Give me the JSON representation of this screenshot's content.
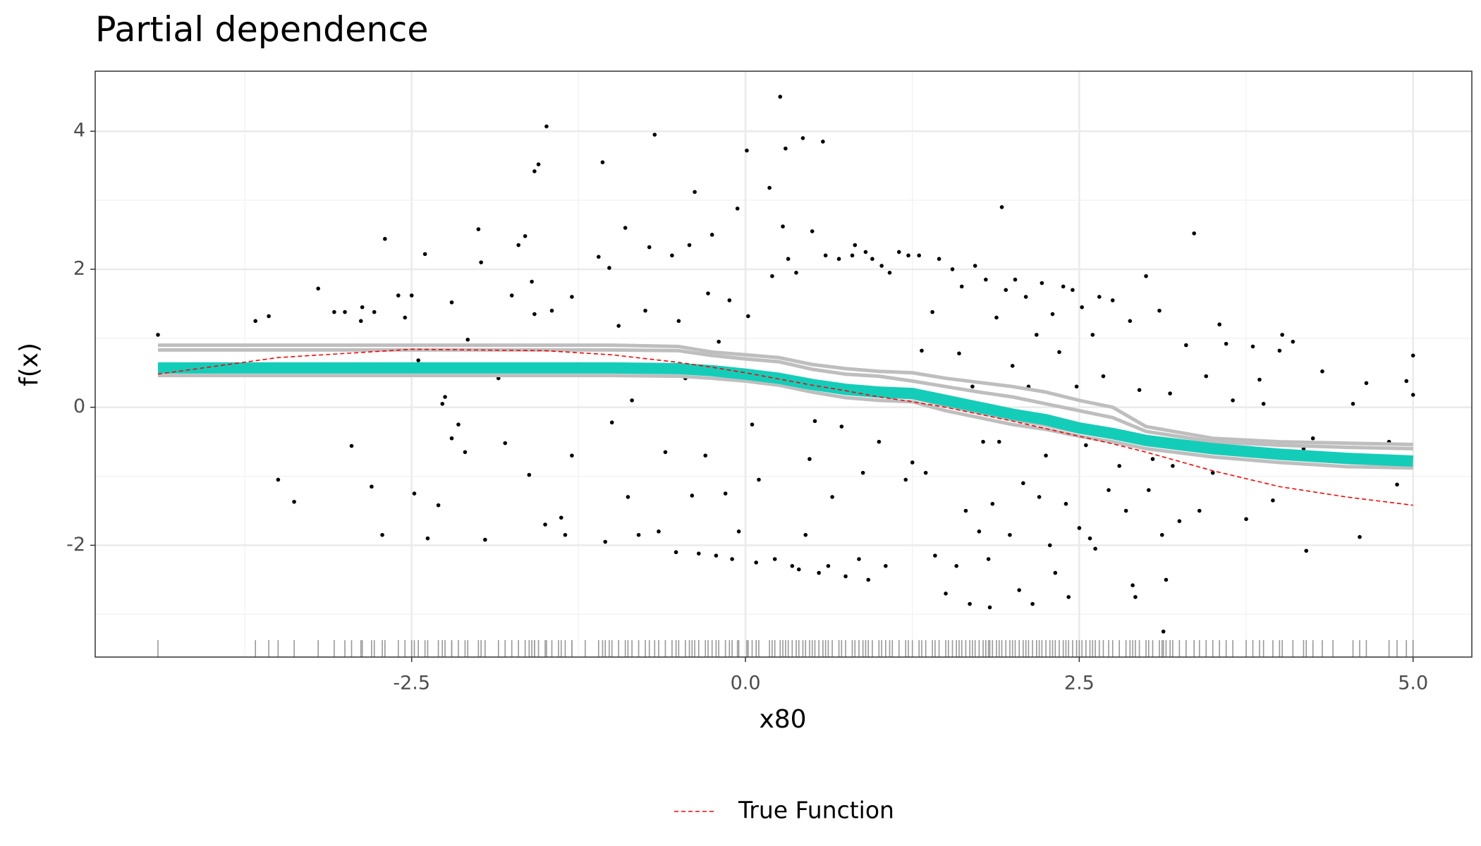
{
  "chart_data": {
    "type": "line",
    "title": "Partial dependence",
    "xlabel": "x80",
    "ylabel": "f(x)",
    "xlim": [
      -4.87,
      5.44
    ],
    "ylim": [
      -3.62,
      4.87
    ],
    "xticks": [
      -2.5,
      {
        "value": 0,
        "label": "0.0"
      },
      2.5,
      {
        "value": 5,
        "label": "5.0"
      }
    ],
    "yticks": [
      -2,
      0,
      2,
      4
    ],
    "xminor": [
      -3.75,
      -1.25,
      1.25,
      3.75
    ],
    "yminor": [
      -3,
      -1,
      1,
      3
    ],
    "grid": true,
    "rug": true,
    "legend": "bottom",
    "x": [
      -4.4,
      -3.5,
      -2.5,
      -1.5,
      -1,
      -0.5,
      -0.25,
      0,
      0.25,
      0.5,
      0.75,
      1,
      1.25,
      1.5,
      1.75,
      2,
      2.25,
      2.5,
      2.75,
      3,
      3.5,
      4,
      4.5,
      5
    ],
    "series": [
      {
        "color": "#bebebe",
        "width": 5,
        "values": [
          0.9,
          0.9,
          0.9,
          0.9,
          0.9,
          0.88,
          0.8,
          0.76,
          0.72,
          0.62,
          0.56,
          0.52,
          0.5,
          0.42,
          0.36,
          0.3,
          0.22,
          0.1,
          0,
          -0.28,
          -0.45,
          -0.5,
          -0.52,
          -0.54
        ]
      },
      {
        "color": "#bebebe",
        "width": 5,
        "values": [
          0.83,
          0.83,
          0.83,
          0.83,
          0.83,
          0.82,
          0.75,
          0.7,
          0.66,
          0.55,
          0.48,
          0.45,
          0.38,
          0.3,
          0.22,
          0.15,
          0.05,
          -0.05,
          -0.15,
          -0.35,
          -0.5,
          -0.55,
          -0.58,
          -0.6
        ]
      },
      {
        "color": "#bebebe",
        "width": 5,
        "values": [
          0.62,
          0.62,
          0.62,
          0.62,
          0.62,
          0.61,
          0.58,
          0.53,
          0.47,
          0.38,
          0.3,
          0.26,
          0.24,
          0.14,
          0.04,
          -0.06,
          -0.14,
          -0.26,
          -0.34,
          -0.44,
          -0.56,
          -0.64,
          -0.7,
          -0.74
        ]
      },
      {
        "color": "#bebebe",
        "width": 5,
        "values": [
          0.52,
          0.52,
          0.52,
          0.52,
          0.52,
          0.51,
          0.48,
          0.43,
          0.37,
          0.28,
          0.2,
          0.16,
          0.14,
          0.02,
          -0.08,
          -0.18,
          -0.26,
          -0.36,
          -0.44,
          -0.54,
          -0.66,
          -0.74,
          -0.8,
          -0.84
        ]
      },
      {
        "color": "#bebebe",
        "width": 5,
        "values": [
          0.46,
          0.46,
          0.46,
          0.46,
          0.46,
          0.45,
          0.42,
          0.38,
          0.32,
          0.22,
          0.14,
          0.1,
          0.08,
          -0.05,
          -0.15,
          -0.25,
          -0.32,
          -0.42,
          -0.5,
          -0.6,
          -0.72,
          -0.8,
          -0.86,
          -0.88
        ]
      },
      {
        "color": "#14cdb9",
        "width": 16,
        "values": [
          0.57,
          0.57,
          0.57,
          0.57,
          0.57,
          0.56,
          0.53,
          0.48,
          0.42,
          0.33,
          0.26,
          0.22,
          0.2,
          0.1,
          0,
          -0.1,
          -0.18,
          -0.3,
          -0.38,
          -0.48,
          -0.6,
          -0.68,
          -0.74,
          -0.78
        ]
      },
      {
        "name": "True Function",
        "color": "#ff0000",
        "width": 1.6,
        "dash": "dashed",
        "values": [
          0.48,
          0.72,
          0.84,
          0.82,
          0.76,
          0.65,
          0.58,
          0.5,
          0.41,
          0.32,
          0.24,
          0.15,
          0.08,
          0,
          -0.1,
          -0.2,
          -0.31,
          -0.42,
          -0.53,
          -0.65,
          -0.92,
          -1.15,
          -1.3,
          -1.42
        ]
      }
    ],
    "points": {
      "color": "#000000",
      "x": [
        -4.4,
        -3.67,
        -3.57,
        -3.5,
        -3.38,
        -3.2,
        -3.08,
        -3.0,
        -2.95,
        -2.88,
        -2.87,
        -2.8,
        -2.78,
        -2.72,
        -2.7,
        -2.6,
        -2.55,
        -2.5,
        -2.48,
        -2.45,
        -2.4,
        -2.38,
        -2.3,
        -2.27,
        -2.25,
        -2.2,
        -2.2,
        -2.15,
        -2.1,
        -2.08,
        -2.0,
        -1.98,
        -1.95,
        -1.85,
        -1.8,
        -1.75,
        -1.7,
        -1.65,
        -1.62,
        -1.6,
        -1.58,
        -1.58,
        -1.55,
        -1.5,
        -1.45,
        -1.49,
        -1.4,
        -1.38,
        -1.35,
        -1.3,
        -1.3,
        -1.2,
        -1.1,
        -1.07,
        -1.05,
        -1.02,
        -1.0,
        -0.95,
        -0.9,
        -0.88,
        -0.85,
        -0.8,
        -0.75,
        -0.72,
        -0.68,
        -0.65,
        -0.6,
        -0.55,
        -0.52,
        -0.5,
        -0.45,
        -0.42,
        -0.4,
        -0.38,
        -0.35,
        -0.3,
        -0.28,
        -0.25,
        -0.22,
        -0.2,
        -0.15,
        -0.12,
        -0.1,
        -0.06,
        -0.05,
        0.01,
        0.02,
        0.05,
        0.08,
        0.1,
        0.18,
        0.2,
        0.22,
        0.26,
        0.28,
        0.3,
        0.32,
        0.35,
        0.38,
        0.4,
        0.43,
        0.45,
        0.48,
        0.5,
        0.52,
        0.55,
        0.58,
        0.6,
        0.62,
        0.65,
        0.7,
        0.72,
        0.75,
        0.8,
        0.82,
        0.85,
        0.88,
        0.9,
        0.92,
        0.95,
        1.0,
        1.02,
        1.05,
        1.08,
        1.1,
        1.15,
        1.2,
        1.22,
        1.25,
        1.3,
        1.32,
        1.35,
        1.4,
        1.42,
        1.45,
        1.5,
        1.52,
        1.55,
        1.58,
        1.6,
        1.62,
        1.65,
        1.68,
        1.7,
        1.72,
        1.75,
        1.78,
        1.8,
        1.82,
        1.83,
        1.85,
        1.88,
        1.9,
        1.92,
        1.95,
        1.98,
        2.0,
        2.02,
        2.05,
        2.08,
        2.1,
        2.12,
        2.15,
        2.18,
        2.2,
        2.22,
        2.25,
        2.28,
        2.3,
        2.32,
        2.35,
        2.38,
        2.4,
        2.42,
        2.45,
        2.48,
        2.5,
        2.52,
        2.55,
        2.58,
        2.6,
        2.62,
        2.65,
        2.68,
        2.72,
        2.75,
        2.8,
        2.85,
        2.88,
        2.9,
        2.92,
        2.95,
        3.0,
        3.02,
        3.05,
        3.1,
        3.12,
        3.15,
        3.13,
        3.18,
        3.2,
        3.25,
        3.3,
        3.36,
        3.4,
        3.45,
        3.5,
        3.55,
        3.6,
        3.65,
        3.75,
        3.8,
        3.85,
        3.88,
        3.95,
        4.0,
        4.02,
        4.1,
        4.18,
        4.2,
        4.25,
        4.32,
        4.4,
        4.55,
        4.6,
        4.65,
        4.82,
        4.88,
        4.95,
        5.0,
        5.0
      ],
      "y": [
        1.05,
        1.25,
        1.32,
        -1.05,
        -1.37,
        1.72,
        1.38,
        1.38,
        -0.56,
        1.25,
        1.45,
        -1.15,
        1.38,
        -1.85,
        2.44,
        1.62,
        1.3,
        1.62,
        -1.25,
        0.68,
        2.22,
        -1.9,
        -1.42,
        0.05,
        0.15,
        1.52,
        -0.45,
        -0.25,
        -0.65,
        0.98,
        2.58,
        2.1,
        -1.92,
        0.42,
        -0.52,
        1.62,
        2.35,
        2.48,
        -0.98,
        1.82,
        1.35,
        3.42,
        3.52,
        -1.7,
        1.4,
        4.07,
        0.62,
        -1.6,
        -1.85,
        1.6,
        -0.7,
        0.6,
        2.18,
        3.55,
        -1.95,
        2.02,
        -0.22,
        1.18,
        2.6,
        -1.3,
        0.1,
        -1.85,
        1.4,
        2.32,
        3.95,
        -1.8,
        -0.65,
        2.2,
        -2.1,
        1.25,
        0.42,
        2.35,
        -1.28,
        3.12,
        -2.12,
        -0.7,
        1.65,
        2.5,
        -2.15,
        0.95,
        -1.25,
        1.55,
        -2.2,
        2.88,
        -1.8,
        3.72,
        1.32,
        -0.25,
        -2.25,
        -1.05,
        3.18,
        1.9,
        -2.2,
        4.5,
        2.62,
        3.75,
        2.15,
        -2.3,
        1.95,
        -2.35,
        3.9,
        -1.85,
        -0.75,
        2.55,
        -0.2,
        -2.4,
        3.85,
        2.2,
        -2.3,
        -1.3,
        2.15,
        -0.28,
        -2.45,
        2.2,
        2.35,
        -2.2,
        -0.95,
        2.25,
        -2.5,
        2.15,
        -0.5,
        2.05,
        -2.3,
        1.95,
        0.15,
        2.25,
        -1.05,
        2.2,
        -0.8,
        2.2,
        0.82,
        -0.95,
        1.38,
        -2.15,
        2.15,
        -2.7,
        0.1,
        2.0,
        -2.3,
        0.78,
        1.75,
        -1.5,
        -2.85,
        0.3,
        2.05,
        -1.8,
        -0.5,
        1.85,
        -2.2,
        -2.9,
        -1.4,
        1.3,
        -0.5,
        2.9,
        1.7,
        -1.85,
        0.6,
        1.85,
        -2.65,
        -1.1,
        1.6,
        0.3,
        -2.85,
        1.05,
        -1.3,
        1.8,
        -0.7,
        -2.0,
        1.35,
        -2.4,
        0.8,
        1.75,
        -1.4,
        -2.75,
        1.7,
        0.3,
        -1.75,
        1.45,
        -0.55,
        -1.9,
        1.05,
        -2.05,
        1.6,
        0.45,
        -1.2,
        1.55,
        -0.85,
        -1.5,
        1.25,
        -2.58,
        -2.75,
        0.25,
        1.9,
        -1.2,
        -0.75,
        1.4,
        -1.85,
        -2.5,
        -3.25,
        0.2,
        -0.85,
        -1.65,
        0.9,
        2.52,
        -1.5,
        0.45,
        -0.95,
        1.2,
        0.92,
        0.1,
        -1.62,
        0.88,
        0.4,
        0.05,
        -1.35,
        0.82,
        1.05,
        0.95,
        -0.6,
        -2.08,
        -0.45,
        0.52,
        -0.75,
        0.05,
        -1.88,
        0.35,
        -0.5,
        -1.12,
        0.38,
        0.75,
        0.18
      ]
    }
  }
}
